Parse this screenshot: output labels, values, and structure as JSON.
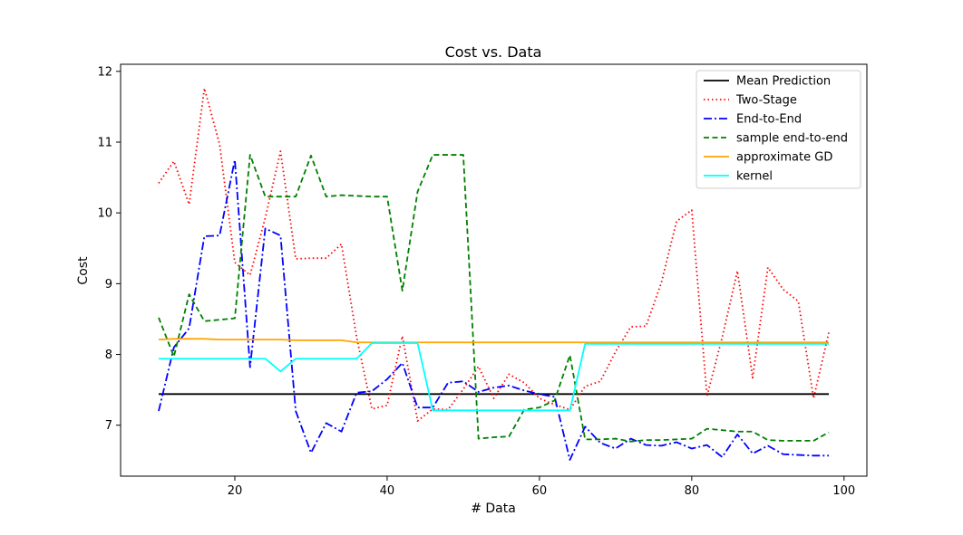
{
  "chart_data": {
    "type": "line",
    "title": "Cost vs. Data",
    "xlabel": "# Data",
    "ylabel": "Cost",
    "xlim": [
      5,
      103
    ],
    "ylim": [
      6.28,
      12.1
    ],
    "xticks": [
      20,
      40,
      60,
      80,
      100
    ],
    "yticks": [
      7,
      8,
      9,
      10,
      11,
      12
    ],
    "grid": false,
    "legend_position": "top-right",
    "x": [
      10,
      12,
      14,
      16,
      18,
      20,
      22,
      24,
      26,
      28,
      30,
      32,
      34,
      36,
      38,
      40,
      42,
      44,
      46,
      48,
      50,
      52,
      54,
      56,
      58,
      60,
      62,
      64,
      66,
      68,
      70,
      72,
      74,
      76,
      78,
      80,
      82,
      84,
      86,
      88,
      90,
      92,
      94,
      96,
      98
    ],
    "series": [
      {
        "name": "Mean Prediction",
        "color": "#000000",
        "dash": "solid",
        "values": [
          7.44,
          7.44,
          7.44,
          7.44,
          7.44,
          7.44,
          7.44,
          7.44,
          7.44,
          7.44,
          7.44,
          7.44,
          7.44,
          7.44,
          7.44,
          7.44,
          7.44,
          7.44,
          7.44,
          7.44,
          7.44,
          7.44,
          7.44,
          7.44,
          7.44,
          7.44,
          7.44,
          7.44,
          7.44,
          7.44,
          7.44,
          7.44,
          7.44,
          7.44,
          7.44,
          7.44,
          7.44,
          7.44,
          7.44,
          7.44,
          7.44,
          7.44,
          7.44,
          7.44,
          7.44
        ]
      },
      {
        "name": "Two-Stage",
        "color": "#ff0000",
        "dash": "dotted",
        "values": [
          10.42,
          10.73,
          10.12,
          11.76,
          10.97,
          9.3,
          9.12,
          9.93,
          10.87,
          9.35,
          9.36,
          9.36,
          9.56,
          8.24,
          7.23,
          7.28,
          8.26,
          7.06,
          7.23,
          7.22,
          7.51,
          7.83,
          7.38,
          7.72,
          7.6,
          7.38,
          7.29,
          7.22,
          7.55,
          7.62,
          8.04,
          8.39,
          8.4,
          9.01,
          9.88,
          10.04,
          7.41,
          8.24,
          9.18,
          7.67,
          9.23,
          8.92,
          8.75,
          7.38,
          8.31
        ]
      },
      {
        "name": "End-to-End",
        "color": "#0000ff",
        "dash": "dashdot",
        "values": [
          7.2,
          8.1,
          8.37,
          9.67,
          9.68,
          10.75,
          7.82,
          9.78,
          9.68,
          7.2,
          6.61,
          7.03,
          6.91,
          7.46,
          7.48,
          7.65,
          7.88,
          7.25,
          7.25,
          7.6,
          7.62,
          7.47,
          7.53,
          7.56,
          7.49,
          7.44,
          7.4,
          6.51,
          6.98,
          6.75,
          6.67,
          6.81,
          6.72,
          6.71,
          6.76,
          6.67,
          6.72,
          6.55,
          6.87,
          6.6,
          6.71,
          6.59,
          6.58,
          6.57,
          6.57
        ]
      },
      {
        "name": "sample end-to-end",
        "color": "#008000",
        "dash": "dashed",
        "values": [
          8.52,
          7.97,
          8.85,
          8.47,
          8.49,
          8.51,
          10.82,
          10.23,
          10.23,
          10.23,
          10.81,
          10.23,
          10.25,
          10.24,
          10.23,
          10.23,
          8.9,
          10.3,
          10.82,
          10.82,
          10.82,
          6.81,
          6.83,
          6.84,
          7.22,
          7.25,
          7.35,
          7.99,
          6.8,
          6.8,
          6.81,
          6.77,
          6.79,
          6.79,
          6.8,
          6.81,
          6.95,
          6.93,
          6.91,
          6.91,
          6.79,
          6.78,
          6.78,
          6.78,
          6.9
        ]
      },
      {
        "name": "approximate GD",
        "color": "#ffa500",
        "dash": "solid",
        "values": [
          8.21,
          8.22,
          8.22,
          8.22,
          8.21,
          8.21,
          8.21,
          8.21,
          8.21,
          8.2,
          8.2,
          8.2,
          8.2,
          8.17,
          8.17,
          8.17,
          8.17,
          8.17,
          8.17,
          8.17,
          8.17,
          8.17,
          8.17,
          8.17,
          8.17,
          8.17,
          8.17,
          8.17,
          8.17,
          8.17,
          8.17,
          8.17,
          8.17,
          8.17,
          8.17,
          8.17,
          8.17,
          8.17,
          8.17,
          8.17,
          8.17,
          8.17,
          8.17,
          8.17,
          8.17
        ]
      },
      {
        "name": "kernel",
        "color": "#00ffff",
        "dash": "solid",
        "values": [
          7.94,
          7.94,
          7.94,
          7.94,
          7.94,
          7.94,
          7.94,
          7.94,
          7.76,
          7.94,
          7.94,
          7.94,
          7.94,
          7.94,
          8.16,
          8.16,
          8.16,
          8.16,
          7.21,
          7.21,
          7.21,
          7.21,
          7.21,
          7.21,
          7.21,
          7.21,
          7.21,
          7.21,
          8.15,
          8.15,
          8.15,
          8.15,
          8.15,
          8.15,
          8.15,
          8.15,
          8.15,
          8.15,
          8.15,
          8.15,
          8.15,
          8.15,
          8.15,
          8.15,
          8.15
        ]
      }
    ]
  }
}
